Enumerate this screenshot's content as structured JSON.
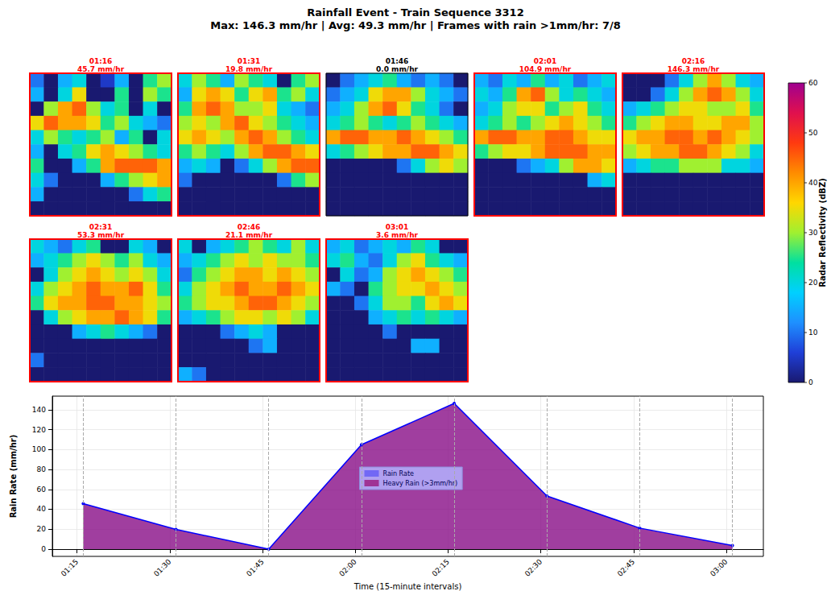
{
  "title": "Rainfall Event - Train Sequence 3312",
  "subtitle": "Max: 146.3 mm/hr | Avg: 49.3 mm/hr | Frames with rain >1mm/hr: 7/8",
  "colorbar": {
    "label": "Radar Reflectivity (dBZ)",
    "range": [
      0,
      60
    ],
    "ticks": [
      0,
      10,
      20,
      30,
      40,
      50,
      60
    ]
  },
  "panels": [
    {
      "time": "01:16",
      "label": "45.7 mm/hr",
      "color": "red",
      "cells": [
        [
          10,
          0,
          15,
          20,
          0,
          5,
          15,
          0,
          25,
          30
        ],
        [
          15,
          0,
          20,
          35,
          0,
          0,
          25,
          0,
          30,
          25
        ],
        [
          0,
          30,
          40,
          45,
          30,
          20,
          25,
          0,
          20,
          0
        ],
        [
          35,
          45,
          40,
          40,
          35,
          25,
          30,
          20,
          15,
          10
        ],
        [
          20,
          30,
          25,
          20,
          25,
          30,
          15,
          25,
          0,
          20
        ],
        [
          15,
          0,
          20,
          25,
          35,
          40,
          35,
          30,
          25,
          20
        ],
        [
          25,
          0,
          0,
          15,
          25,
          40,
          45,
          45,
          45,
          40
        ],
        [
          20,
          10,
          0,
          0,
          0,
          15,
          25,
          30,
          35,
          40
        ],
        [
          15,
          0,
          0,
          0,
          0,
          0,
          0,
          10,
          20,
          25
        ],
        [
          0,
          0,
          0,
          0,
          0,
          0,
          0,
          0,
          0,
          0
        ]
      ]
    },
    {
      "time": "01:31",
      "label": "19.8 mm/hr",
      "color": "red",
      "cells": [
        [
          20,
          30,
          25,
          15,
          30,
          25,
          20,
          0,
          25,
          30
        ],
        [
          15,
          35,
          40,
          35,
          25,
          35,
          40,
          25,
          30,
          20
        ],
        [
          25,
          40,
          45,
          40,
          30,
          30,
          35,
          20,
          15,
          10
        ],
        [
          30,
          35,
          30,
          40,
          45,
          35,
          30,
          25,
          20,
          15
        ],
        [
          35,
          40,
          35,
          30,
          40,
          45,
          40,
          30,
          25,
          20
        ],
        [
          25,
          30,
          25,
          20,
          30,
          40,
          45,
          45,
          40,
          35
        ],
        [
          15,
          20,
          15,
          0,
          10,
          20,
          30,
          40,
          45,
          45
        ],
        [
          10,
          0,
          0,
          0,
          0,
          0,
          0,
          10,
          25,
          30
        ],
        [
          0,
          0,
          0,
          0,
          0,
          0,
          0,
          0,
          0,
          0
        ],
        [
          0,
          0,
          0,
          0,
          0,
          0,
          0,
          0,
          0,
          0
        ]
      ]
    },
    {
      "time": "01:46",
      "label": "0.0 mm/hr",
      "color": "black",
      "cells": [
        [
          0,
          10,
          15,
          20,
          25,
          15,
          10,
          15,
          10,
          0
        ],
        [
          10,
          15,
          20,
          35,
          40,
          40,
          30,
          20,
          15,
          10
        ],
        [
          15,
          20,
          30,
          40,
          45,
          35,
          25,
          20,
          10,
          0
        ],
        [
          20,
          25,
          30,
          25,
          20,
          25,
          30,
          25,
          20,
          15
        ],
        [
          40,
          45,
          45,
          40,
          40,
          45,
          40,
          35,
          30,
          25
        ],
        [
          20,
          25,
          30,
          35,
          40,
          40,
          45,
          45,
          40,
          35
        ],
        [
          0,
          0,
          0,
          0,
          0,
          10,
          20,
          30,
          35,
          30
        ],
        [
          0,
          0,
          0,
          0,
          0,
          0,
          0,
          0,
          0,
          0
        ],
        [
          0,
          0,
          0,
          0,
          0,
          0,
          0,
          0,
          0,
          0
        ],
        [
          0,
          0,
          0,
          0,
          0,
          0,
          0,
          0,
          0,
          0
        ]
      ]
    },
    {
      "time": "02:01",
      "label": "104.9 mm/hr",
      "color": "red",
      "cells": [
        [
          15,
          10,
          20,
          15,
          25,
          15,
          20,
          10,
          15,
          20
        ],
        [
          20,
          15,
          25,
          40,
          45,
          30,
          20,
          25,
          20,
          15
        ],
        [
          15,
          20,
          30,
          35,
          35,
          25,
          30,
          35,
          25,
          20
        ],
        [
          20,
          25,
          30,
          25,
          30,
          35,
          40,
          35,
          30,
          25
        ],
        [
          40,
          45,
          45,
          40,
          40,
          45,
          45,
          40,
          35,
          35
        ],
        [
          25,
          30,
          35,
          35,
          40,
          45,
          45,
          45,
          40,
          40
        ],
        [
          0,
          0,
          0,
          10,
          15,
          20,
          30,
          40,
          40,
          35
        ],
        [
          0,
          0,
          0,
          0,
          0,
          0,
          0,
          0,
          15,
          20
        ],
        [
          0,
          0,
          0,
          0,
          0,
          0,
          0,
          0,
          0,
          0
        ],
        [
          0,
          0,
          0,
          0,
          0,
          0,
          0,
          0,
          0,
          0
        ]
      ]
    },
    {
      "time": "02:16",
      "label": "146.3 mm/hr",
      "color": "red",
      "cells": [
        [
          0,
          0,
          0,
          10,
          20,
          30,
          40,
          30,
          20,
          15
        ],
        [
          0,
          0,
          10,
          20,
          30,
          40,
          45,
          40,
          30,
          20
        ],
        [
          15,
          20,
          25,
          30,
          35,
          35,
          30,
          30,
          35,
          25
        ],
        [
          25,
          30,
          35,
          40,
          40,
          35,
          35,
          40,
          40,
          30
        ],
        [
          35,
          40,
          40,
          45,
          45,
          40,
          45,
          40,
          35,
          30
        ],
        [
          30,
          35,
          40,
          40,
          45,
          45,
          40,
          35,
          30,
          20
        ],
        [
          15,
          20,
          25,
          25,
          30,
          30,
          30,
          20,
          20,
          15
        ],
        [
          0,
          0,
          0,
          0,
          0,
          0,
          0,
          0,
          0,
          0
        ],
        [
          0,
          0,
          0,
          0,
          0,
          0,
          0,
          0,
          0,
          0
        ],
        [
          0,
          0,
          0,
          0,
          0,
          0,
          0,
          0,
          0,
          0
        ]
      ]
    },
    {
      "time": "02:31",
      "label": "53.3 mm/hr",
      "color": "red",
      "cells": [
        [
          20,
          15,
          10,
          20,
          25,
          0,
          0,
          20,
          15,
          0
        ],
        [
          15,
          20,
          25,
          30,
          35,
          30,
          25,
          30,
          20,
          15
        ],
        [
          0,
          20,
          30,
          35,
          40,
          35,
          30,
          35,
          30,
          20
        ],
        [
          20,
          30,
          35,
          40,
          45,
          40,
          40,
          45,
          35,
          25
        ],
        [
          25,
          35,
          40,
          40,
          45,
          45,
          40,
          40,
          35,
          30
        ],
        [
          0,
          20,
          30,
          35,
          40,
          40,
          45,
          40,
          35,
          25
        ],
        [
          0,
          0,
          0,
          15,
          20,
          25,
          20,
          15,
          10,
          0
        ],
        [
          0,
          0,
          0,
          0,
          0,
          0,
          0,
          0,
          0,
          0
        ],
        [
          10,
          0,
          0,
          0,
          0,
          0,
          0,
          0,
          0,
          0
        ],
        [
          0,
          0,
          0,
          0,
          0,
          0,
          0,
          0,
          0,
          0
        ]
      ]
    },
    {
      "time": "02:46",
      "label": "21.1 mm/hr",
      "color": "red",
      "cells": [
        [
          20,
          0,
          15,
          20,
          25,
          30,
          25,
          20,
          30,
          20
        ],
        [
          15,
          20,
          25,
          30,
          35,
          30,
          35,
          30,
          30,
          25
        ],
        [
          10,
          25,
          30,
          35,
          40,
          40,
          35,
          40,
          35,
          30
        ],
        [
          20,
          30,
          35,
          40,
          45,
          40,
          40,
          45,
          40,
          35
        ],
        [
          25,
          30,
          35,
          35,
          40,
          45,
          45,
          40,
          35,
          30
        ],
        [
          15,
          20,
          25,
          30,
          35,
          35,
          30,
          35,
          30,
          20
        ],
        [
          0,
          0,
          0,
          10,
          15,
          20,
          15,
          0,
          0,
          0
        ],
        [
          0,
          0,
          0,
          0,
          0,
          10,
          15,
          0,
          0,
          0
        ],
        [
          0,
          0,
          0,
          0,
          0,
          0,
          0,
          0,
          0,
          0
        ],
        [
          15,
          10,
          0,
          0,
          0,
          0,
          0,
          0,
          0,
          0
        ]
      ]
    },
    {
      "time": "03:01",
      "label": "3.6 mm/hr",
      "color": "red",
      "cells": [
        [
          15,
          20,
          10,
          15,
          20,
          15,
          25,
          20,
          0,
          0
        ],
        [
          20,
          25,
          15,
          10,
          20,
          30,
          35,
          25,
          20,
          15
        ],
        [
          0,
          20,
          10,
          15,
          30,
          35,
          40,
          35,
          30,
          25
        ],
        [
          15,
          10,
          0,
          25,
          30,
          35,
          35,
          40,
          35,
          30
        ],
        [
          0,
          0,
          10,
          20,
          30,
          30,
          25,
          35,
          40,
          35
        ],
        [
          0,
          0,
          0,
          15,
          20,
          25,
          20,
          25,
          20,
          15
        ],
        [
          0,
          0,
          0,
          0,
          10,
          0,
          0,
          0,
          0,
          0
        ],
        [
          0,
          0,
          0,
          0,
          0,
          0,
          15,
          15,
          0,
          0
        ],
        [
          0,
          0,
          0,
          0,
          0,
          0,
          0,
          0,
          0,
          0
        ],
        [
          0,
          0,
          0,
          0,
          0,
          0,
          0,
          0,
          0,
          0
        ]
      ]
    }
  ],
  "chart_data": {
    "type": "line",
    "xlabel": "Time (15-minute intervals)",
    "ylabel": "Rain Rate (mm/hr)",
    "x": [
      "01:16",
      "01:31",
      "01:46",
      "02:01",
      "02:16",
      "02:31",
      "02:46",
      "03:01"
    ],
    "series": [
      {
        "name": "Rain Rate",
        "color": "#0000ff",
        "marker": "circle",
        "values": [
          45.7,
          19.8,
          0.0,
          104.9,
          146.3,
          53.3,
          21.1,
          3.6
        ]
      },
      {
        "name": "Heavy Rain (>3mm/hr)",
        "color": "#dc143c",
        "type": "area",
        "values": [
          45.7,
          19.8,
          0.0,
          104.9,
          146.3,
          53.3,
          21.1,
          3.6
        ]
      }
    ],
    "xlim": [
      "01:11",
      "03:06"
    ],
    "xticks": [
      "01:15",
      "01:30",
      "01:45",
      "02:00",
      "02:15",
      "02:30",
      "02:45",
      "03:00"
    ],
    "ylim": [
      -7.3,
      153.6
    ],
    "yticks": [
      0,
      20,
      40,
      60,
      80,
      100,
      120,
      140
    ],
    "grid": true,
    "legend": "center"
  }
}
